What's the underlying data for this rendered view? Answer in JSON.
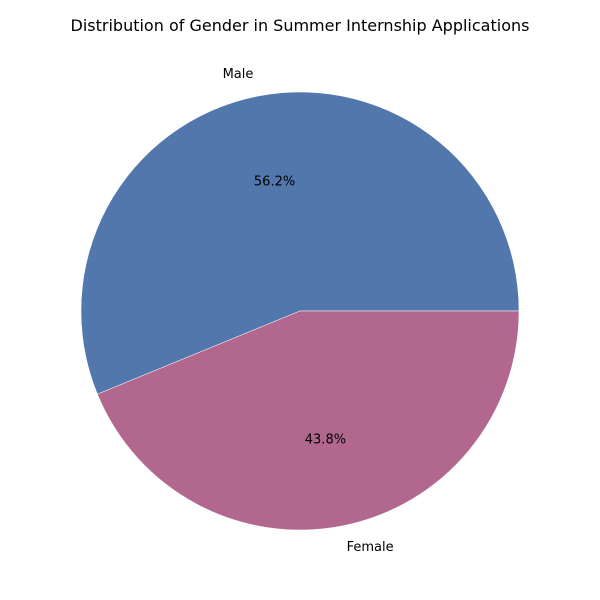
{
  "chart_data": {
    "type": "pie",
    "title": "Distribution of Gender in Summer Internship Applications",
    "categories": [
      "Male",
      "Female"
    ],
    "values": [
      56.2,
      43.8
    ],
    "percent_labels": [
      "56.2%",
      "43.8%"
    ],
    "colors": [
      "#5277ad",
      "#b2678f"
    ],
    "start_angle_deg": 0,
    "direction": "counterclockwise",
    "legend": "none"
  }
}
